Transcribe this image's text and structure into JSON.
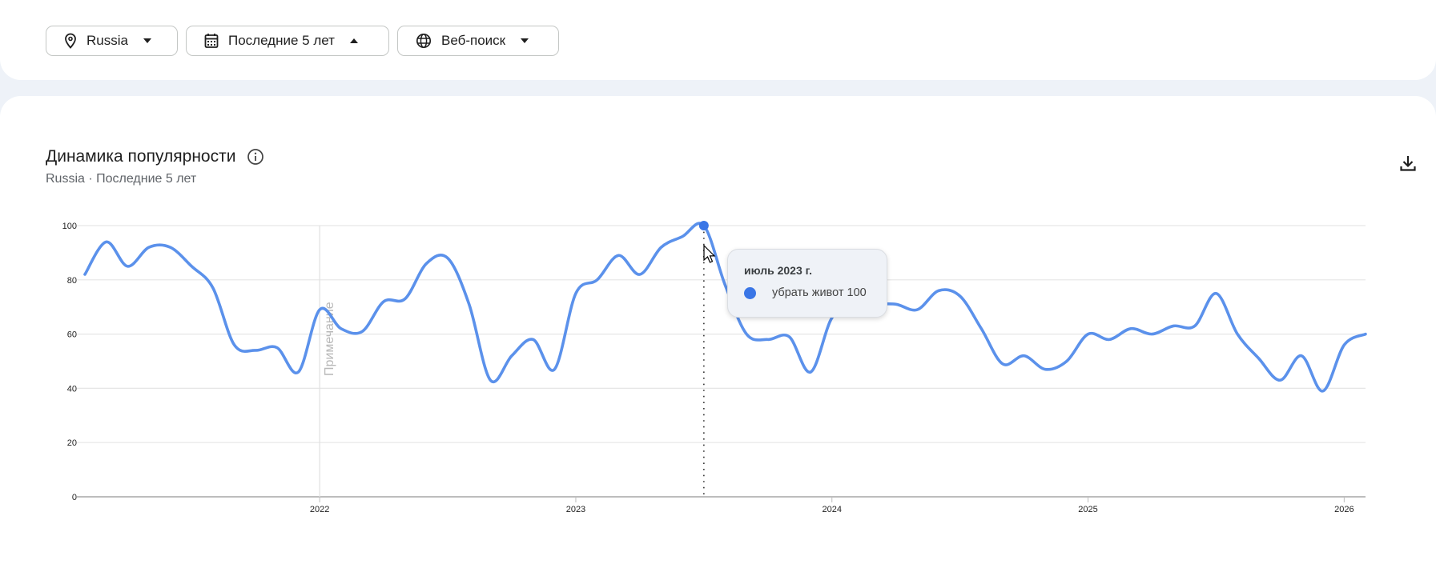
{
  "filters": [
    {
      "icon": "location-pin-icon",
      "label": "Russia",
      "arrow": "down"
    },
    {
      "icon": "calendar-icon",
      "label": "Последние 5 лет",
      "arrow": "up"
    },
    {
      "icon": "globe-icon",
      "label": "Веб-поиск",
      "arrow": "down"
    }
  ],
  "header": {
    "title": "Динамика популярности",
    "subtitle": "Russia · Последние 5 лет"
  },
  "tooltip": {
    "date": "июль 2023 г.",
    "series_label": "убрать живот 100"
  },
  "colors": {
    "line": "#5b91eb",
    "marker": "#3a76e6"
  },
  "chart_data": {
    "type": "line",
    "title": "Динамика популярности",
    "xlabel": "",
    "ylabel": "",
    "ylim": [
      0,
      100
    ],
    "yticks": [
      0,
      20,
      40,
      60,
      80,
      100
    ],
    "xticks": [
      "2022",
      "2023",
      "2024",
      "2025",
      "2026"
    ],
    "grid": true,
    "x_start": "2021-02",
    "x_end": "2026-02",
    "interval": "month",
    "annotation": {
      "x": "2022-01",
      "label": "Примечание"
    },
    "highlight": {
      "x": "2023-07",
      "value": 100
    },
    "series": [
      {
        "name": "убрать живот",
        "values": [
          82,
          94,
          85,
          92,
          92,
          85,
          77,
          56,
          54,
          55,
          46,
          69,
          62,
          61,
          72,
          73,
          86,
          88,
          71,
          43,
          52,
          58,
          47,
          75,
          80,
          89,
          82,
          92,
          96,
          100,
          78,
          60,
          58,
          59,
          46,
          66,
          71,
          71,
          71,
          69,
          76,
          74,
          62,
          49,
          52,
          47,
          50,
          60,
          58,
          62,
          60,
          63,
          63,
          75,
          60,
          51,
          43,
          52,
          39,
          56,
          60
        ]
      }
    ]
  }
}
